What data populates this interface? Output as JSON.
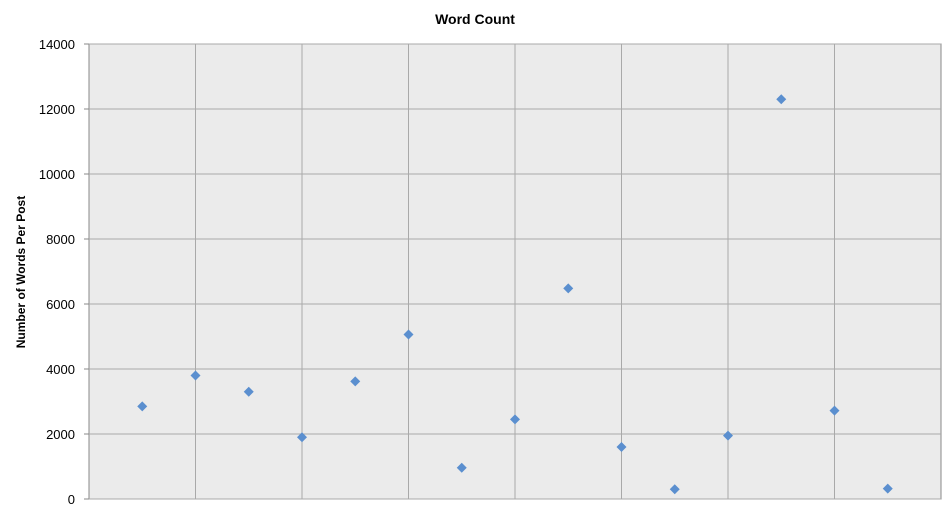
{
  "chart_data": {
    "type": "scatter",
    "title": "Word Count",
    "xlabel": "",
    "ylabel": "Number of Words Per Post",
    "ylim": [
      0,
      14000
    ],
    "yticks": [
      0,
      2000,
      4000,
      6000,
      8000,
      10000,
      12000,
      14000
    ],
    "ytick_labels": [
      "0",
      "2000",
      "4000",
      "6000",
      "8000",
      "10000",
      "12000",
      "14000"
    ],
    "xlim": [
      0,
      16
    ],
    "x_grid": [
      2,
      4,
      6,
      8,
      10,
      12,
      14
    ],
    "grid": true,
    "legend": "none",
    "series": [
      {
        "x": [
          1,
          2,
          3,
          4,
          5,
          6,
          7,
          8,
          9,
          10,
          11,
          12,
          13,
          14,
          15
        ],
        "values": [
          2850,
          3800,
          3300,
          1900,
          3620,
          5060,
          960,
          2450,
          6480,
          1600,
          300,
          1950,
          12300,
          2720,
          320
        ]
      }
    ],
    "colors": {
      "marker": "#5B8FCF",
      "plot_background": "#EBEBEB",
      "grid": "#A9A9A9",
      "axis": "#888888"
    }
  }
}
